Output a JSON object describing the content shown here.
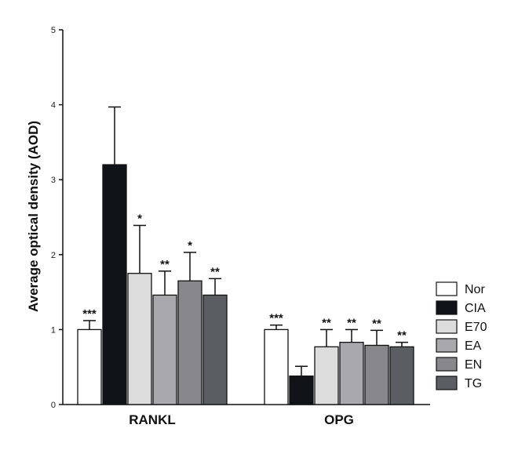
{
  "chart_data": {
    "type": "bar",
    "ylabel": "Average optical density (AOD)",
    "ylim": [
      0,
      5
    ],
    "yticks": [
      "0",
      "1",
      "2",
      "3",
      "4",
      "5"
    ],
    "categories": [
      "RANKL",
      "OPG"
    ],
    "series": [
      {
        "name": "Nor",
        "color": "#ffffff",
        "values": [
          1.0,
          1.0
        ],
        "errors": [
          0.12,
          0.06
        ],
        "significance": [
          "***",
          "***"
        ]
      },
      {
        "name": "CIA",
        "color": "#101418",
        "values": [
          3.2,
          0.38
        ],
        "errors": [
          0.77,
          0.13
        ],
        "significance": [
          "",
          ""
        ]
      },
      {
        "name": "E70",
        "color": "#dcdcdc",
        "values": [
          1.75,
          0.77
        ],
        "errors": [
          0.64,
          0.23
        ],
        "significance": [
          "*",
          "**"
        ]
      },
      {
        "name": "EA",
        "color": "#a9a9ad",
        "values": [
          1.46,
          0.83
        ],
        "errors": [
          0.32,
          0.17
        ],
        "significance": [
          "**",
          "**"
        ]
      },
      {
        "name": "EN",
        "color": "#88888c",
        "values": [
          1.65,
          0.79
        ],
        "errors": [
          0.38,
          0.2
        ],
        "significance": [
          "*",
          "**"
        ]
      },
      {
        "name": "TG",
        "color": "#5a5d62",
        "values": [
          1.46,
          0.77
        ],
        "errors": [
          0.22,
          0.06
        ],
        "significance": [
          "**",
          "**"
        ]
      }
    ],
    "legend_position": "right"
  }
}
